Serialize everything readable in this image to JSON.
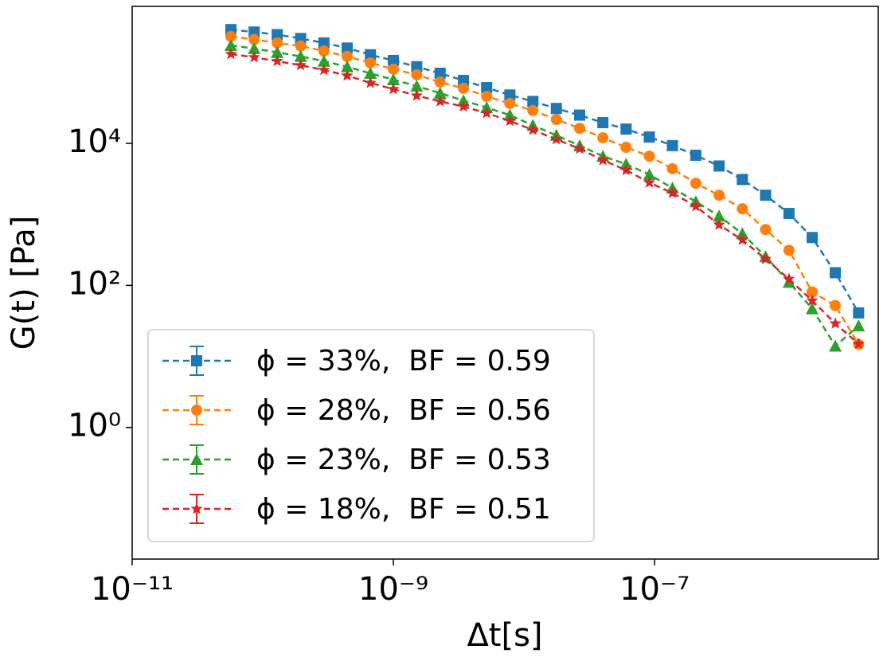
{
  "chart_data": {
    "type": "line",
    "xlabel": "Δt[s]",
    "ylabel": "G(t) [Pa]",
    "xlog": true,
    "ylog": true,
    "legend": "lower left",
    "xlim": [
      1e-11,
      5.16e-06
    ],
    "ylim": [
      0.014,
      850000
    ],
    "xticks": [
      {
        "value": 1e-11,
        "label": "10⁻¹¹"
      },
      {
        "value": 1e-09,
        "label": "10⁻⁹"
      },
      {
        "value": 1e-07,
        "label": "10⁻⁷"
      }
    ],
    "yticks": [
      {
        "value": 1,
        "label": "10⁰"
      },
      {
        "value": 100,
        "label": "10²"
      },
      {
        "value": 10000,
        "label": "10⁴"
      }
    ],
    "x": [
      5.7e-11,
      8.59e-11,
      1.29e-10,
      1.95e-10,
      2.94e-10,
      4.43e-10,
      6.67e-10,
      1e-09,
      1.51e-09,
      2.28e-09,
      3.44e-09,
      5.18e-09,
      7.8e-09,
      1.17e-08,
      1.77e-08,
      2.67e-08,
      4.02e-08,
      6.05e-08,
      9.12e-08,
      1.37e-07,
      2.07e-07,
      3.12e-07,
      4.7e-07,
      7.08e-07,
      1.07e-06,
      1.61e-06,
      2.42e-06,
      3.65e-06
    ],
    "series": [
      {
        "name": "ϕ = 33%,  BF = 0.59",
        "color": "#1f77b4",
        "marker": "square",
        "values": [
          400000,
          370000,
          340000,
          300000,
          260000,
          220000,
          177000,
          147000,
          120000,
          97000,
          77000,
          61000,
          48000,
          39000,
          31000,
          25000,
          19600,
          15900,
          12300,
          9300,
          6800,
          4800,
          3100,
          1860,
          1030,
          472,
          151,
          41
        ]
      },
      {
        "name": "ϕ = 28%,  BF = 0.56",
        "color": "#ff7f0e",
        "marker": "circle",
        "values": [
          320000,
          290000,
          260000,
          235000,
          200000,
          168000,
          136000,
          111000,
          92500,
          73000,
          59600,
          46000,
          36500,
          29000,
          21700,
          16300,
          12000,
          8800,
          6600,
          4400,
          2740,
          1860,
          1200,
          612,
          312,
          81,
          52,
          14.8
        ]
      },
      {
        "name": "ϕ = 23%,  BF = 0.53",
        "color": "#2ca02c",
        "marker": "triangle",
        "values": [
          240000,
          217000,
          191000,
          168000,
          144000,
          120000,
          97000,
          79000,
          64000,
          51000,
          40000,
          32000,
          25000,
          18000,
          13000,
          9300,
          6600,
          5100,
          3650,
          2350,
          1510,
          950,
          537,
          254,
          111,
          47,
          14,
          27
        ]
      },
      {
        "name": "ϕ = 18%,  BF = 0.51",
        "color": "#d62728",
        "marker": "star",
        "values": [
          181000,
          163000,
          144000,
          126000,
          108000,
          90000,
          71000,
          58000,
          47000,
          39000,
          33000,
          26700,
          20700,
          15500,
          11400,
          8400,
          5800,
          4200,
          2800,
          2000,
          1300,
          714,
          437,
          235,
          123,
          61,
          29,
          15
        ]
      }
    ]
  }
}
